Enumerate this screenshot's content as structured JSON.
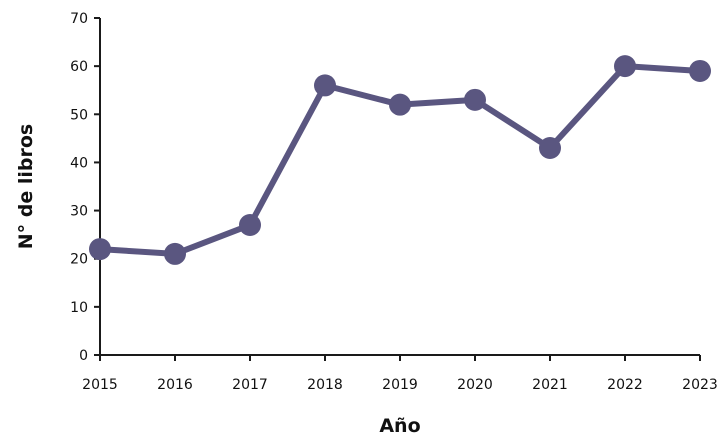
{
  "chart_data": {
    "type": "line",
    "title": "",
    "xlabel": "Año",
    "ylabel": "N° de libros",
    "x": [
      2015,
      2016,
      2017,
      2018,
      2019,
      2020,
      2021,
      2022,
      2023
    ],
    "series": [
      {
        "values": [
          22,
          21,
          27,
          56,
          52,
          53,
          43,
          60,
          59
        ]
      }
    ],
    "ylim": [
      0,
      70
    ],
    "yticks": [
      0,
      10,
      20,
      30,
      40,
      50,
      60,
      70
    ],
    "grid": false,
    "legend": "none",
    "colors": {
      "series": "#5a5680",
      "axis": "#1a1a1a"
    }
  }
}
